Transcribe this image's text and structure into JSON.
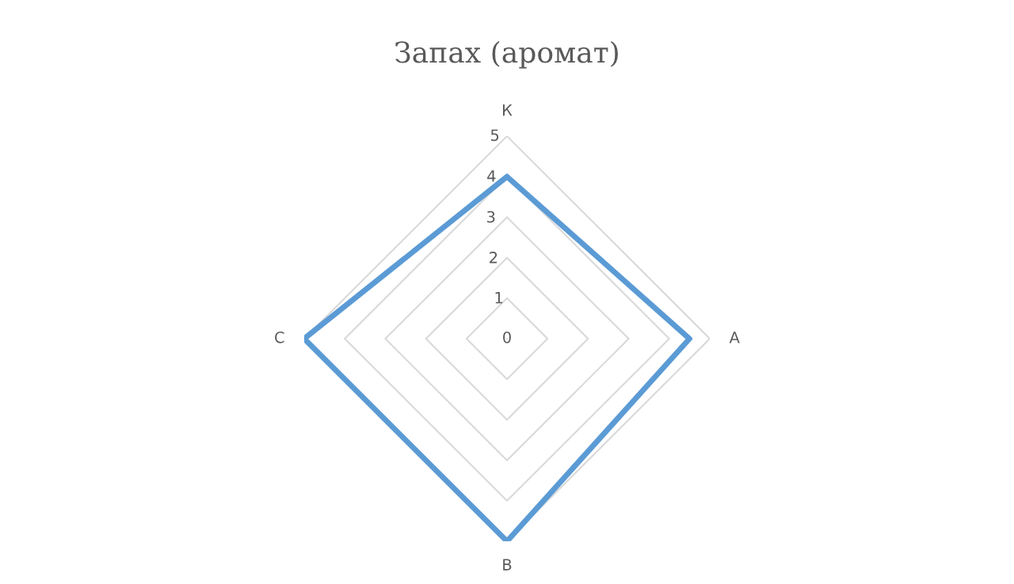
{
  "chart_data": {
    "type": "radar",
    "title": "Запах (аромат)",
    "categories": [
      "К",
      "А",
      "В",
      "С"
    ],
    "series": [
      {
        "color": "#5b9bd5",
        "values": [
          4,
          4.5,
          5,
          5
        ]
      }
    ],
    "ylim": [
      0,
      5
    ],
    "yticks": [
      0,
      1,
      2,
      3,
      4,
      5
    ],
    "grid": true,
    "marker": "none",
    "line_style": "solid"
  }
}
